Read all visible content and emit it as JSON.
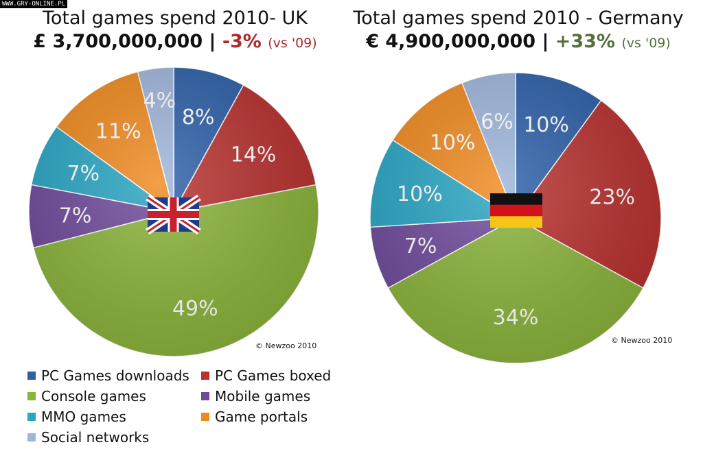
{
  "watermark": "WWW.GRY-ONLINE.PL",
  "colors": {
    "PC Games downloads": "#2e60a8",
    "PC Games boxed": "#b83230",
    "Console games": "#8bb43c",
    "Mobile games": "#6f4b9b",
    "MMO games": "#2aa5c3",
    "Game portals": "#ef8a20",
    "Social networks": "#9fb5da"
  },
  "chart_data": [
    {
      "type": "pie",
      "title": "Total games spend 2010- UK",
      "total": "£ 3,700,000,000",
      "separator": "|",
      "change": "-3%",
      "change_note": "(vs '09)",
      "flag": "uk-flag",
      "copyright": "© Newzoo 2010",
      "categories": [
        "PC Games downloads",
        "PC Games boxed",
        "Console games",
        "Mobile games",
        "MMO games",
        "Game portals",
        "Social networks"
      ],
      "values": [
        8,
        14,
        49,
        7,
        7,
        11,
        4
      ],
      "labels": [
        "8%",
        "14%",
        "49%",
        "7%",
        "7%",
        "11%",
        "4%"
      ]
    },
    {
      "type": "pie",
      "title": "Total games spend 2010 - Germany",
      "total": "€ 4,900,000,000",
      "separator": "|",
      "change": "+33%",
      "change_note": "(vs '09)",
      "flag": "germany-flag",
      "copyright": "© Newzoo 2010",
      "categories": [
        "PC Games downloads",
        "PC Games boxed",
        "Console games",
        "Mobile games",
        "MMO games",
        "Game portals",
        "Social networks"
      ],
      "values": [
        10,
        23,
        34,
        7,
        10,
        10,
        6
      ],
      "labels": [
        "10%",
        "23%",
        "34%",
        "7%",
        "10%",
        "10%",
        "6%"
      ]
    }
  ],
  "legend": [
    "PC Games downloads",
    "PC Games boxed",
    "Console games",
    "Mobile games",
    "MMO games",
    "Game portals",
    "Social networks"
  ]
}
